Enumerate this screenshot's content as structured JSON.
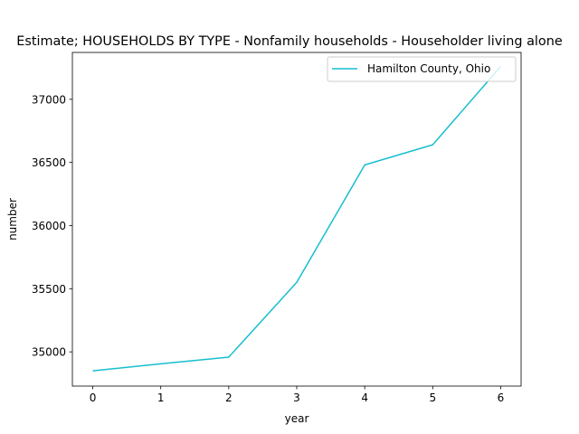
{
  "chart_data": {
    "type": "line",
    "title": "Estimate; HOUSEHOLDS BY TYPE - Nonfamily households - Householder living alone",
    "xlabel": "year",
    "ylabel": "number",
    "x": [
      0,
      1,
      2,
      3,
      4,
      5,
      6
    ],
    "series": [
      {
        "name": "Hamilton County, Ohio",
        "color": "#17becf",
        "values": [
          34850,
          34905,
          34958,
          35550,
          36480,
          36640,
          37260
        ]
      }
    ],
    "xlim": [
      -0.3,
      6.3
    ],
    "ylim": [
      34729,
      37371
    ],
    "xticks": [
      0,
      1,
      2,
      3,
      4,
      5,
      6
    ],
    "yticks": [
      35000,
      35500,
      36000,
      36500,
      37000
    ],
    "legend_position": "upper right",
    "grid": false
  }
}
